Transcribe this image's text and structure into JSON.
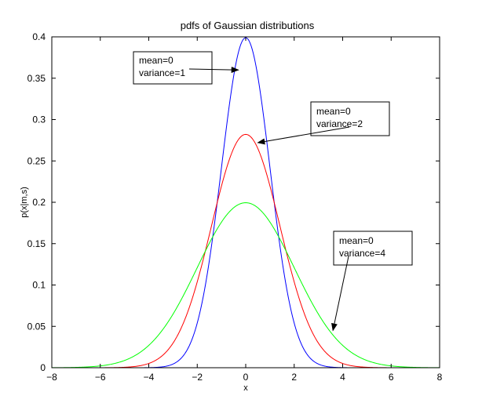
{
  "chart_data": {
    "type": "line",
    "title": "pdfs of Gaussian distributions",
    "xlabel": "x",
    "ylabel": "p(x|m,s)",
    "xlim": [
      -8,
      8
    ],
    "ylim": [
      0,
      0.4
    ],
    "xticks": [
      -8,
      -6,
      -4,
      -2,
      0,
      2,
      4,
      6,
      8
    ],
    "yticks": [
      0,
      0.05,
      0.1,
      0.15,
      0.2,
      0.25,
      0.3,
      0.35,
      0.4
    ],
    "xtick_labels": [
      "−8",
      "−6",
      "−4",
      "−2",
      "0",
      "2",
      "4",
      "6",
      "8"
    ],
    "ytick_labels": [
      "0",
      "0.05",
      "0.1",
      "0.15",
      "0.2",
      "0.25",
      "0.3",
      "0.35",
      "0.4"
    ],
    "grid": false,
    "series": [
      {
        "mean": 0,
        "variance": 1,
        "color": "#0000ff"
      },
      {
        "mean": 0,
        "variance": 2,
        "color": "#ff0000"
      },
      {
        "mean": 0,
        "variance": 4,
        "color": "#00ff00"
      }
    ],
    "annotations": [
      {
        "line1": "mean=0",
        "line2": "variance=1",
        "target": [
          -0.3,
          0.36
        ]
      },
      {
        "line1": "mean=0",
        "line2": "variance=2",
        "target": [
          0.5,
          0.272
        ]
      },
      {
        "line1": "mean=0",
        "line2": "variance=4",
        "target": [
          3.6,
          0.045
        ]
      }
    ]
  }
}
